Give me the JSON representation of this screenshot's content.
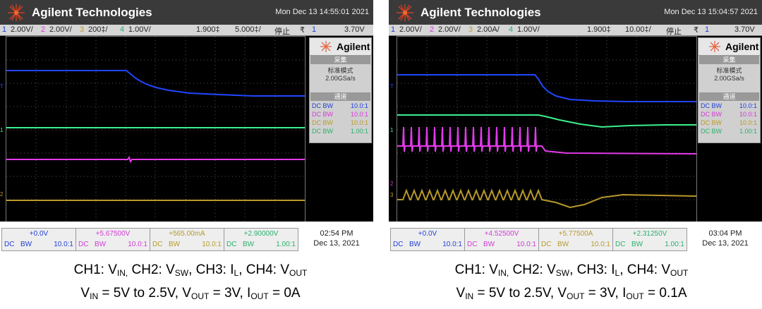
{
  "scopes": [
    {
      "id": "left",
      "brand": "Agilent Technologies",
      "timestamp": "Mon Dec 13 14:55:01 2021",
      "channel_bar": {
        "ch1_num": "1",
        "ch1_scale": "2.00V/",
        "ch2_num": "2",
        "ch2_scale": "2.00V/",
        "ch3_num": "3",
        "ch3_scale": "200‡/",
        "ch4_num": "4",
        "ch4_scale": "1.00V/",
        "delay": "1.900‡",
        "time_scale": "5.000‡/",
        "run_state": "停止",
        "trigger_symbol": "₹",
        "trigger_ch": "1",
        "trigger_level": "3.70V"
      },
      "side_panel": {
        "brand": "Agilent",
        "acq_header": "采集",
        "acq_mode": "标准模式",
        "sample_rate": "2.00GSa/s",
        "channel_header": "通道",
        "channels": [
          {
            "coupling": "DC",
            "bw": "BW",
            "probe": "10.0:1"
          },
          {
            "coupling": "DC",
            "bw": "BW",
            "probe": "10.0:1"
          },
          {
            "coupling": "DC",
            "bw": "BW",
            "probe": "10.0:1"
          },
          {
            "coupling": "DC",
            "bw": "BW",
            "probe": "1.00:1"
          }
        ]
      },
      "status": [
        {
          "offset": "+0.0V",
          "coupling": "DC",
          "bw": "BW",
          "probe": "10.0:1"
        },
        {
          "offset": "+5.67500V",
          "coupling": "DC",
          "bw": "BW",
          "probe": "10.0:1"
        },
        {
          "offset": "+565.00mA",
          "coupling": "DC",
          "bw": "BW",
          "probe": "10.0:1"
        },
        {
          "offset": "+2.90000V",
          "coupling": "DC",
          "bw": "BW",
          "probe": "1.00:1"
        }
      ],
      "clock_time": "02:54 PM",
      "clock_date": "Dec 13, 2021",
      "caption_line2": {
        "vin_label": "V",
        "vin_sub": "IN",
        "vin_text": " = 5V to 2.5V, V",
        "vout_sub": "OUT",
        "vout_text": " = 3V, I",
        "iout_sub": "OUT",
        "iout_text": " = 0A"
      }
    },
    {
      "id": "right",
      "brand": "Agilent Technologies",
      "timestamp": "Mon Dec 13 15:04:57 2021",
      "channel_bar": {
        "ch1_num": "1",
        "ch1_scale": "2.00V/",
        "ch2_num": "2",
        "ch2_scale": "2.00V/",
        "ch3_num": "3",
        "ch3_scale": "2.00A/",
        "ch4_num": "4",
        "ch4_scale": "1.00V/",
        "delay": "1.900‡",
        "time_scale": "10.00‡/",
        "run_state": "停止",
        "trigger_symbol": "₹",
        "trigger_ch": "1",
        "trigger_level": "3.70V"
      },
      "side_panel": {
        "brand": "Agilent",
        "acq_header": "采集",
        "acq_mode": "标准模式",
        "sample_rate": "2.00GSa/s",
        "channel_header": "通道",
        "channels": [
          {
            "coupling": "DC",
            "bw": "BW",
            "probe": "10.0:1"
          },
          {
            "coupling": "DC",
            "bw": "BW",
            "probe": "10.0:1"
          },
          {
            "coupling": "DC",
            "bw": "BW",
            "probe": "10.0:1"
          },
          {
            "coupling": "DC",
            "bw": "BW",
            "probe": "1.00:1"
          }
        ]
      },
      "status": [
        {
          "offset": "+0.0V",
          "coupling": "DC",
          "bw": "BW",
          "probe": "10.0:1"
        },
        {
          "offset": "+4.52500V",
          "coupling": "DC",
          "bw": "BW",
          "probe": "10.0:1"
        },
        {
          "offset": "+5.77500A",
          "coupling": "DC",
          "bw": "BW",
          "probe": "10.0:1"
        },
        {
          "offset": "+2.31250V",
          "coupling": "DC",
          "bw": "BW",
          "probe": "1.00:1"
        }
      ],
      "clock_time": "03:04 PM",
      "clock_date": "Dec 13, 2021",
      "caption_line2": {
        "vin_label": "V",
        "vin_sub": "IN",
        "vin_text": " = 5V to 2.5V, V",
        "vout_sub": "OUT",
        "vout_text": " = 3V, I",
        "iout_sub": "OUT",
        "iout_text": " = 0.1A"
      }
    }
  ],
  "caption_line1": {
    "p1": "CH1: V",
    "s1": "IN,",
    "p2": " CH2: V",
    "s2": "SW",
    "p3": ", CH3: I",
    "s3": "L",
    "p4": ", CH4: V",
    "s4": "OUT"
  },
  "colors": {
    "ch1": "#1f3fd8",
    "ch2": "#d23ad6",
    "ch3": "#b89a2a",
    "ch4": "#2fd98a",
    "trace_ch1": "#2146ff",
    "trace_ch2": "#e23aec",
    "trace_ch3": "#b8982a",
    "trace_ch4": "#3cf08c"
  }
}
